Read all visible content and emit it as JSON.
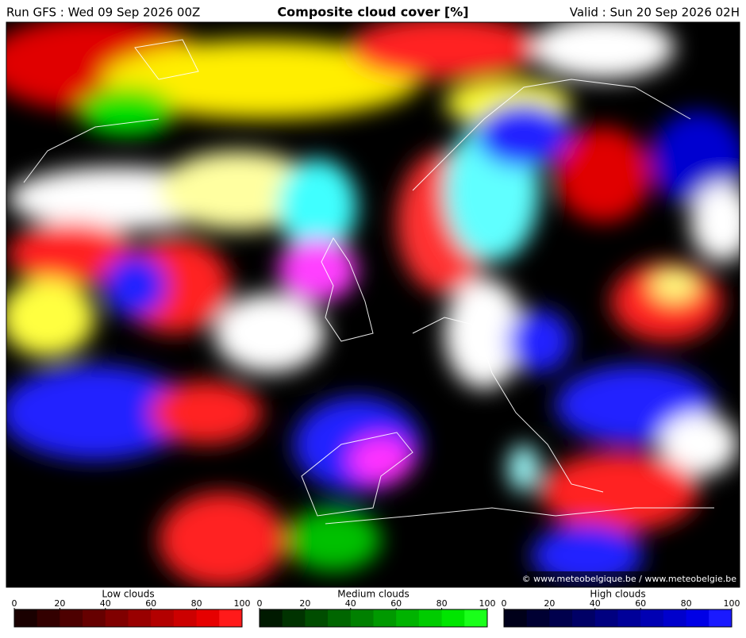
{
  "header": {
    "run": "Run GFS : Wed 09 Sep 2026 00Z",
    "title": "Composite cloud cover [%]",
    "valid": "Valid : Sun 20 Sep 2026 02H"
  },
  "map": {
    "credit": "© www.meteobelgique.be / www.meteobelgie.be"
  },
  "legends": [
    {
      "title": "Low clouds",
      "ticks": [
        0,
        20,
        40,
        60,
        80,
        100
      ],
      "colors": [
        "#1a0000",
        "#330000",
        "#4d0000",
        "#660000",
        "#800000",
        "#990000",
        "#b30000",
        "#cc0000",
        "#e60000",
        "#ff1a1a"
      ]
    },
    {
      "title": "Medium clouds",
      "ticks": [
        0,
        20,
        40,
        60,
        80,
        100
      ],
      "colors": [
        "#001a00",
        "#003300",
        "#004d00",
        "#006600",
        "#008000",
        "#009900",
        "#00b300",
        "#00cc00",
        "#00e600",
        "#1aff1a"
      ]
    },
    {
      "title": "High clouds",
      "ticks": [
        0,
        20,
        40,
        60,
        80,
        100
      ],
      "colors": [
        "#00001a",
        "#000033",
        "#00004d",
        "#000066",
        "#000080",
        "#000099",
        "#0000b3",
        "#0000cc",
        "#0000e6",
        "#1a1aff"
      ]
    }
  ]
}
